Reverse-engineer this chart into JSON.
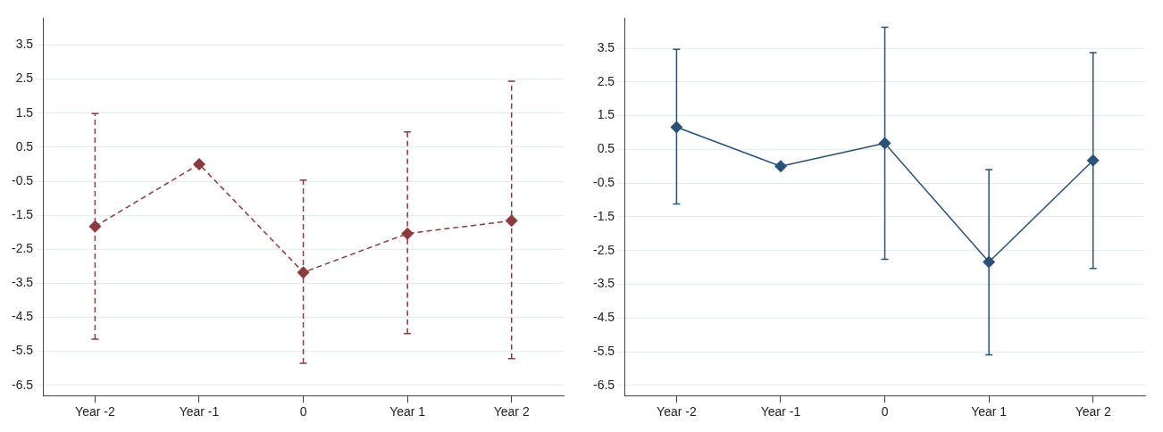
{
  "chart_data": [
    {
      "type": "line",
      "categories": [
        "Year -2",
        "Year -1",
        "0",
        "Year 1",
        "Year 2"
      ],
      "series": [
        {
          "color": "#8b3a3e",
          "values": [
            -1.83,
            0,
            -3.18,
            -2.04,
            -1.66
          ],
          "errors": [
            [
              -5.14,
              1.49
            ],
            null,
            [
              -5.85,
              -0.47
            ],
            [
              -4.98,
              0.95
            ],
            [
              -5.71,
              2.44
            ]
          ]
        }
      ],
      "ylim": [
        -6.8,
        4.3
      ],
      "yticks": [
        -6.5,
        -5.5,
        -4.5,
        -3.5,
        -2.5,
        -1.5,
        -0.5,
        0.5,
        1.5,
        2.5,
        3.5
      ],
      "grid": "y",
      "legend": false,
      "marker": "diamond",
      "line_style": "dashed"
    },
    {
      "type": "line",
      "categories": [
        "Year -2",
        "Year -1",
        "0",
        "Year 1",
        "Year 2"
      ],
      "series": [
        {
          "color": "#2a5279",
          "values": [
            1.16,
            0,
            0.68,
            -2.84,
            0.17
          ],
          "errors": [
            [
              -1.12,
              3.47
            ],
            null,
            [
              -2.76,
              4.12
            ],
            [
              -5.59,
              -0.1
            ],
            [
              -3.03,
              3.37
            ]
          ]
        }
      ],
      "ylim": [
        -6.8,
        4.4
      ],
      "yticks": [
        -6.5,
        -5.5,
        -4.5,
        -3.5,
        -2.5,
        -1.5,
        -0.5,
        0.5,
        1.5,
        2.5,
        3.5
      ],
      "grid": "y",
      "legend": false,
      "marker": "diamond",
      "line_style": "solid"
    }
  ]
}
